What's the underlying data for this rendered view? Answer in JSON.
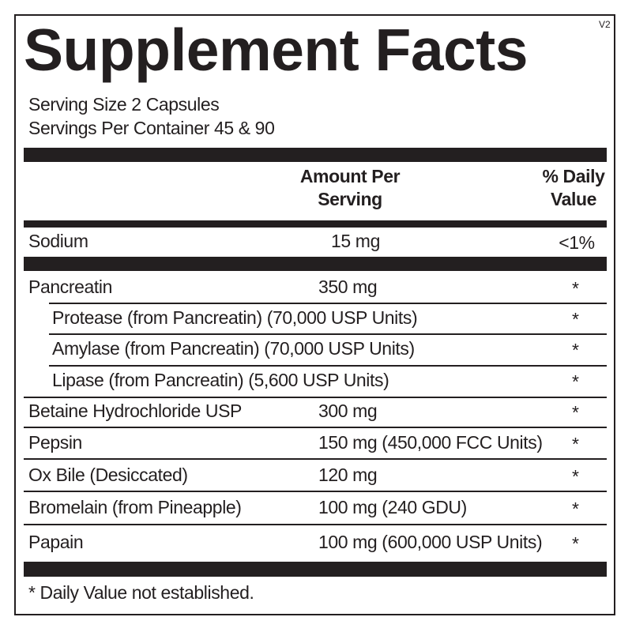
{
  "title": "Supplement Facts",
  "version": "V2",
  "serving_size": "Serving Size  2 Capsules",
  "servings_per_container": "Servings Per Container  45 & 90",
  "header": {
    "amount_line1": "Amount Per",
    "amount_line2": "Serving",
    "dv_line1": "% Daily",
    "dv_line2": "Value"
  },
  "sodium": {
    "name": "Sodium",
    "amount": "15 mg",
    "dv": "<1%"
  },
  "rows": [
    {
      "name": "Pancreatin",
      "amount": "350 mg",
      "dv": "*"
    },
    {
      "name": "Protease (from Pancreatin) (70,000 USP Units)",
      "amount": "",
      "dv": "*"
    },
    {
      "name": "Amylase (from Pancreatin) (70,000 USP Units)",
      "amount": "",
      "dv": "*"
    },
    {
      "name": "Lipase (from Pancreatin) (5,600 USP Units)",
      "amount": "",
      "dv": "*"
    },
    {
      "name": "Betaine Hydrochloride USP",
      "amount": "300 mg",
      "dv": "*"
    },
    {
      "name": "Pepsin",
      "amount": "150 mg (450,000 FCC Units)",
      "dv": "*"
    },
    {
      "name": "Ox Bile (Desiccated)",
      "amount": "120 mg",
      "dv": "*"
    },
    {
      "name": "Bromelain (from Pineapple)",
      "amount": "100 mg (240 GDU)",
      "dv": "*"
    },
    {
      "name": "Papain",
      "amount": "100 mg (600,000 USP Units)",
      "dv": "*"
    }
  ],
  "footnote": "* Daily Value not established."
}
